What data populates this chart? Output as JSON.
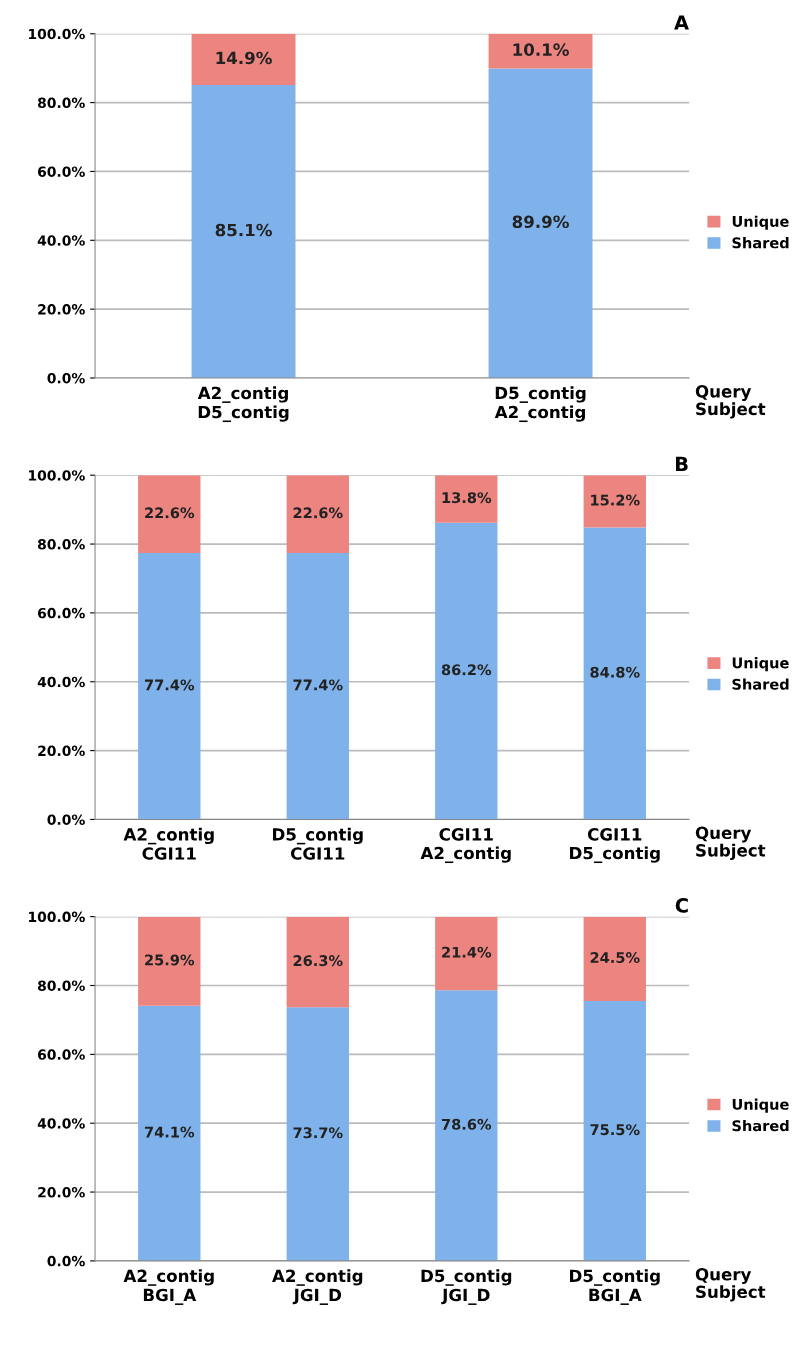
{
  "chart_data": [
    {
      "type": "bar",
      "title": "A",
      "stacked": true,
      "categories": [
        "A2_contig\nD5_contig",
        "D5_contig\nA2_contig"
      ],
      "series": [
        {
          "name": "Shared",
          "color": "#7fb2ea",
          "values": [
            85.1,
            89.9
          ],
          "value_labels": [
            "85.1%",
            "89.9%"
          ]
        },
        {
          "name": "Unique",
          "color": "#ec8580",
          "values": [
            14.9,
            10.1
          ],
          "value_labels": [
            "14.9%",
            "10.1%"
          ]
        }
      ],
      "ylim": [
        0,
        100
      ],
      "yticks": [
        {
          "value": 0,
          "label": "0.0%"
        },
        {
          "value": 20,
          "label": "20.0%"
        },
        {
          "value": 40,
          "label": "40.0%"
        },
        {
          "value": 60,
          "label": "60.0%"
        },
        {
          "value": 80,
          "label": "80.0%"
        },
        {
          "value": 100,
          "label": "100.0%"
        }
      ],
      "grid": "y",
      "legend": "right",
      "annotations": [
        "Query\nSubject"
      ]
    },
    {
      "type": "bar",
      "title": "B",
      "stacked": true,
      "categories": [
        "A2_contig\nCGI11",
        "D5_contig\nCGI11",
        "CGI11\nA2_contig",
        "CGI11\nD5_contig"
      ],
      "series": [
        {
          "name": "Shared",
          "color": "#7fb2ea",
          "values": [
            77.4,
            77.4,
            86.2,
            84.8
          ],
          "value_labels": [
            "77.4%",
            "77.4%",
            "86.2%",
            "84.8%"
          ]
        },
        {
          "name": "Unique",
          "color": "#ec8580",
          "values": [
            22.6,
            22.6,
            13.8,
            15.2
          ],
          "value_labels": [
            "22.6%",
            "22.6%",
            "13.8%",
            "15.2%"
          ]
        }
      ],
      "ylim": [
        0,
        100
      ],
      "yticks": [
        {
          "value": 0,
          "label": "0.0%"
        },
        {
          "value": 20,
          "label": "20.0%"
        },
        {
          "value": 40,
          "label": "40.0%"
        },
        {
          "value": 60,
          "label": "60.0%"
        },
        {
          "value": 80,
          "label": "80.0%"
        },
        {
          "value": 100,
          "label": "100.0%"
        }
      ],
      "grid": "y",
      "legend": "right",
      "annotations": [
        "Query\nSubject"
      ]
    },
    {
      "type": "bar",
      "title": "C",
      "stacked": true,
      "categories": [
        "A2_contig\nBGI_A",
        "A2_contig\nJGI_D",
        "D5_contig\nJGI_D",
        "D5_contig\nBGI_A"
      ],
      "series": [
        {
          "name": "Shared",
          "color": "#7fb2ea",
          "values": [
            74.1,
            73.7,
            78.6,
            75.5
          ],
          "value_labels": [
            "74.1%",
            "73.7%",
            "78.6%",
            "75.5%"
          ]
        },
        {
          "name": "Unique",
          "color": "#ec8580",
          "values": [
            25.9,
            26.3,
            21.4,
            24.5
          ],
          "value_labels": [
            "25.9%",
            "26.3%",
            "21.4%",
            "24.5%"
          ]
        }
      ],
      "ylim": [
        0,
        100
      ],
      "yticks": [
        {
          "value": 0,
          "label": "0.0%"
        },
        {
          "value": 20,
          "label": "20.0%"
        },
        {
          "value": 40,
          "label": "40.0%"
        },
        {
          "value": 60,
          "label": "60.0%"
        },
        {
          "value": 80,
          "label": "80.0%"
        },
        {
          "value": 100,
          "label": "100.0%"
        }
      ],
      "grid": "y",
      "legend": "right",
      "annotations": [
        "Query\nSubject"
      ]
    }
  ]
}
